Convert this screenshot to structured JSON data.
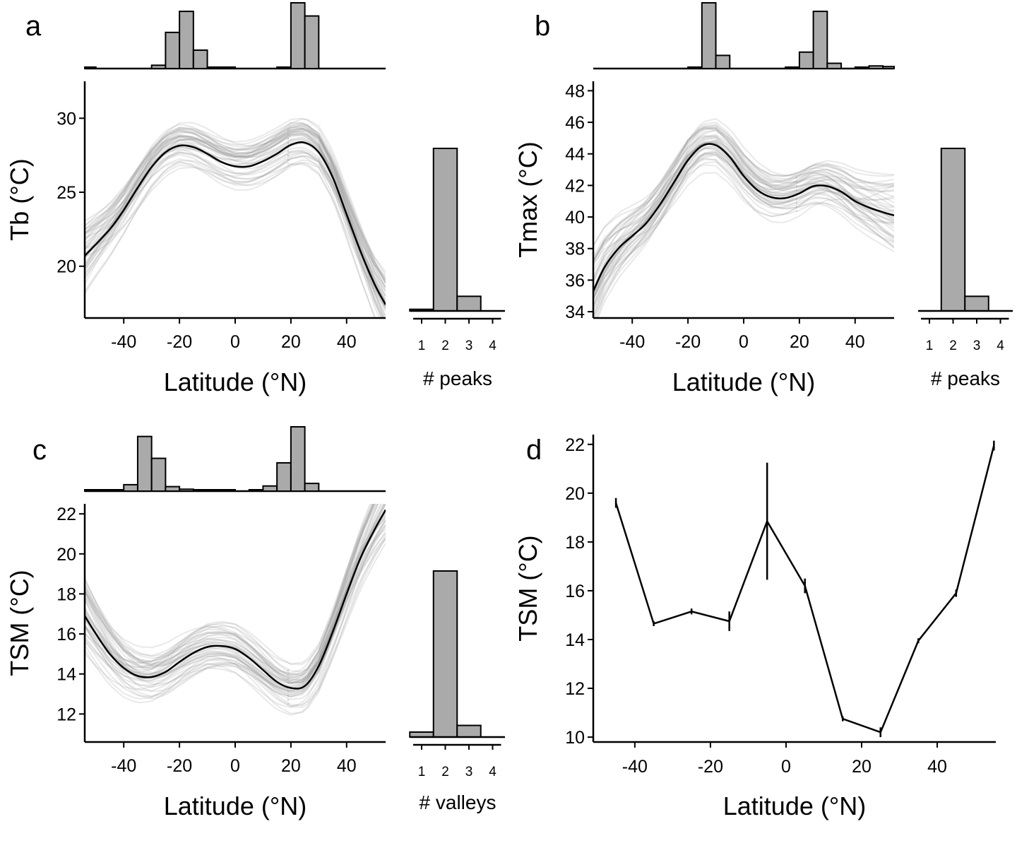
{
  "chart_data": [
    {
      "panel": "a",
      "type": "line",
      "xlabel": "Latitude (°N)",
      "ylabel": "Tb (°C)",
      "xlim": [
        -54,
        54
      ],
      "ylim": [
        16.5,
        32.5
      ],
      "xticks": [
        -40,
        -20,
        0,
        20,
        40
      ],
      "yticks": [
        20,
        25,
        30
      ],
      "mean_curve": {
        "x": [
          -54,
          -45,
          -40,
          -35,
          -30,
          -25,
          -20,
          -15,
          -10,
          -5,
          0,
          5,
          10,
          15,
          20,
          25,
          30,
          35,
          40,
          45,
          50,
          54
        ],
        "y": [
          20.7,
          22.5,
          23.8,
          25.3,
          26.7,
          27.7,
          28.15,
          28.05,
          27.6,
          27.05,
          26.75,
          26.75,
          27.1,
          27.6,
          28.2,
          28.35,
          27.7,
          26.0,
          23.5,
          21.0,
          18.8,
          17.4
        ]
      },
      "hist_peak_positions": {
        "bins": [
          -55,
          -50,
          -45,
          -40,
          -35,
          -30,
          -25,
          -20,
          -15,
          -10,
          -5,
          0,
          5,
          10,
          15,
          20,
          25,
          30,
          35,
          40,
          45,
          50
        ],
        "counts": [
          0.02,
          0,
          0,
          0,
          0,
          0.05,
          0.55,
          0.87,
          0.28,
          0.02,
          0.01,
          0,
          0,
          0,
          0.01,
          1.0,
          0.8,
          0,
          0,
          0,
          0,
          0
        ]
      },
      "hist_n_peaks": {
        "categories": [
          "1",
          "2",
          "3",
          "4"
        ],
        "values": [
          0.01,
          1.0,
          0.09,
          0
        ]
      },
      "hist_xlabel": "# peaks"
    },
    {
      "panel": "b",
      "type": "line",
      "xlabel": "Latitude (°N)",
      "ylabel": "Tmax (°C)",
      "xlim": [
        -54,
        54
      ],
      "ylim": [
        33.6,
        48.6
      ],
      "xticks": [
        -40,
        -20,
        0,
        20,
        40
      ],
      "yticks": [
        34,
        36,
        38,
        40,
        42,
        44,
        46,
        48
      ],
      "mean_curve": {
        "x": [
          -54,
          -50,
          -45,
          -40,
          -35,
          -30,
          -25,
          -20,
          -15,
          -10,
          -5,
          0,
          5,
          10,
          15,
          20,
          25,
          30,
          35,
          40,
          45,
          50,
          54
        ],
        "y": [
          35.3,
          36.8,
          38.0,
          38.8,
          39.6,
          40.8,
          42.2,
          43.6,
          44.5,
          44.55,
          43.8,
          42.6,
          41.7,
          41.25,
          41.2,
          41.5,
          41.95,
          41.95,
          41.6,
          41.0,
          40.6,
          40.3,
          40.1
        ]
      },
      "hist_peak_positions": {
        "bins": [
          -55,
          -50,
          -45,
          -40,
          -35,
          -30,
          -25,
          -20,
          -15,
          -10,
          -5,
          0,
          5,
          10,
          15,
          20,
          25,
          30,
          35,
          40,
          45,
          50
        ],
        "counts": [
          0,
          0,
          0,
          0,
          0,
          0,
          0,
          0.02,
          1.0,
          0.2,
          0,
          0,
          0,
          0,
          0.01,
          0.25,
          0.87,
          0.08,
          0,
          0.02,
          0.04,
          0.03
        ]
      },
      "hist_n_peaks": {
        "categories": [
          "1",
          "2",
          "3",
          "4"
        ],
        "values": [
          0,
          1.0,
          0.09,
          0
        ]
      },
      "hist_xlabel": "# peaks"
    },
    {
      "panel": "c",
      "type": "line",
      "xlabel": "Latitude (°N)",
      "ylabel": "TSM (°C)",
      "xlim": [
        -54,
        54
      ],
      "ylim": [
        10.6,
        22.5
      ],
      "xticks": [
        -40,
        -20,
        0,
        20,
        40
      ],
      "yticks": [
        12,
        14,
        16,
        18,
        20,
        22
      ],
      "mean_curve": {
        "x": [
          -54,
          -50,
          -45,
          -40,
          -35,
          -30,
          -25,
          -20,
          -15,
          -10,
          -5,
          0,
          5,
          10,
          15,
          20,
          25,
          30,
          35,
          40,
          45,
          50,
          54
        ],
        "y": [
          16.9,
          16.0,
          15.0,
          14.3,
          13.9,
          13.85,
          14.1,
          14.6,
          15.05,
          15.35,
          15.4,
          15.25,
          14.8,
          14.2,
          13.6,
          13.3,
          13.4,
          14.4,
          16.1,
          18.0,
          19.8,
          21.2,
          22.2
        ]
      },
      "hist_peak_positions": {
        "bins": [
          -55,
          -50,
          -45,
          -40,
          -35,
          -30,
          -25,
          -20,
          -15,
          -10,
          -5,
          0,
          5,
          10,
          15,
          20,
          25,
          30,
          35,
          40,
          45,
          50
        ],
        "counts": [
          0.02,
          0.01,
          0.02,
          0.1,
          0.85,
          0.51,
          0.07,
          0.03,
          0.02,
          0.01,
          0.01,
          0,
          0.02,
          0.08,
          0.44,
          1.0,
          0.12,
          0,
          0,
          0,
          0,
          0
        ]
      },
      "hist_n_peaks": {
        "categories": [
          "1",
          "2",
          "3",
          "4"
        ],
        "values": [
          0.03,
          1.0,
          0.07,
          0
        ]
      },
      "hist_xlabel": "# valleys"
    },
    {
      "panel": "d",
      "type": "line",
      "xlabel": "Latitude (°N)",
      "ylabel": "TSM (°C)",
      "xlim": [
        -51,
        55.5
      ],
      "ylim": [
        9.8,
        22.4
      ],
      "xticks": [
        -40,
        -20,
        0,
        20,
        40
      ],
      "yticks": [
        10,
        12,
        14,
        16,
        18,
        20,
        22
      ],
      "x": [
        -45,
        -35,
        -25,
        -15,
        -5,
        5,
        15,
        25,
        35,
        45,
        55
      ],
      "y": [
        19.6,
        14.65,
        15.15,
        14.75,
        18.85,
        16.2,
        10.75,
        10.2,
        13.95,
        15.9,
        21.95
      ],
      "err": [
        0.2,
        0.1,
        0.12,
        0.4,
        2.4,
        0.3,
        0.1,
        0.2,
        0.1,
        0.15,
        0.2
      ]
    }
  ]
}
